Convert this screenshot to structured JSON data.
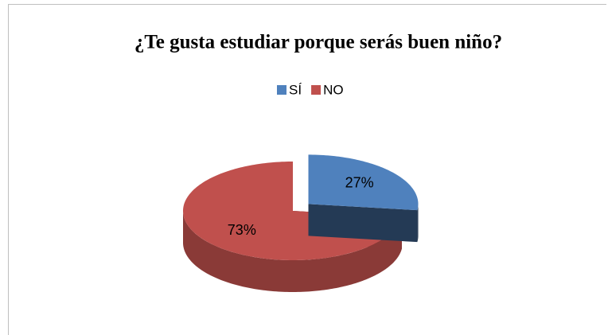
{
  "chart_data": {
    "type": "pie",
    "title": "¿Te gusta estudiar porque serás buen niño?",
    "categories": [
      "SÍ",
      "NO"
    ],
    "values": [
      27,
      73
    ],
    "value_labels": [
      "27%",
      "73%"
    ],
    "colors": [
      "#4f81bd",
      "#c0504d"
    ],
    "legend": "top",
    "three_d": true
  }
}
